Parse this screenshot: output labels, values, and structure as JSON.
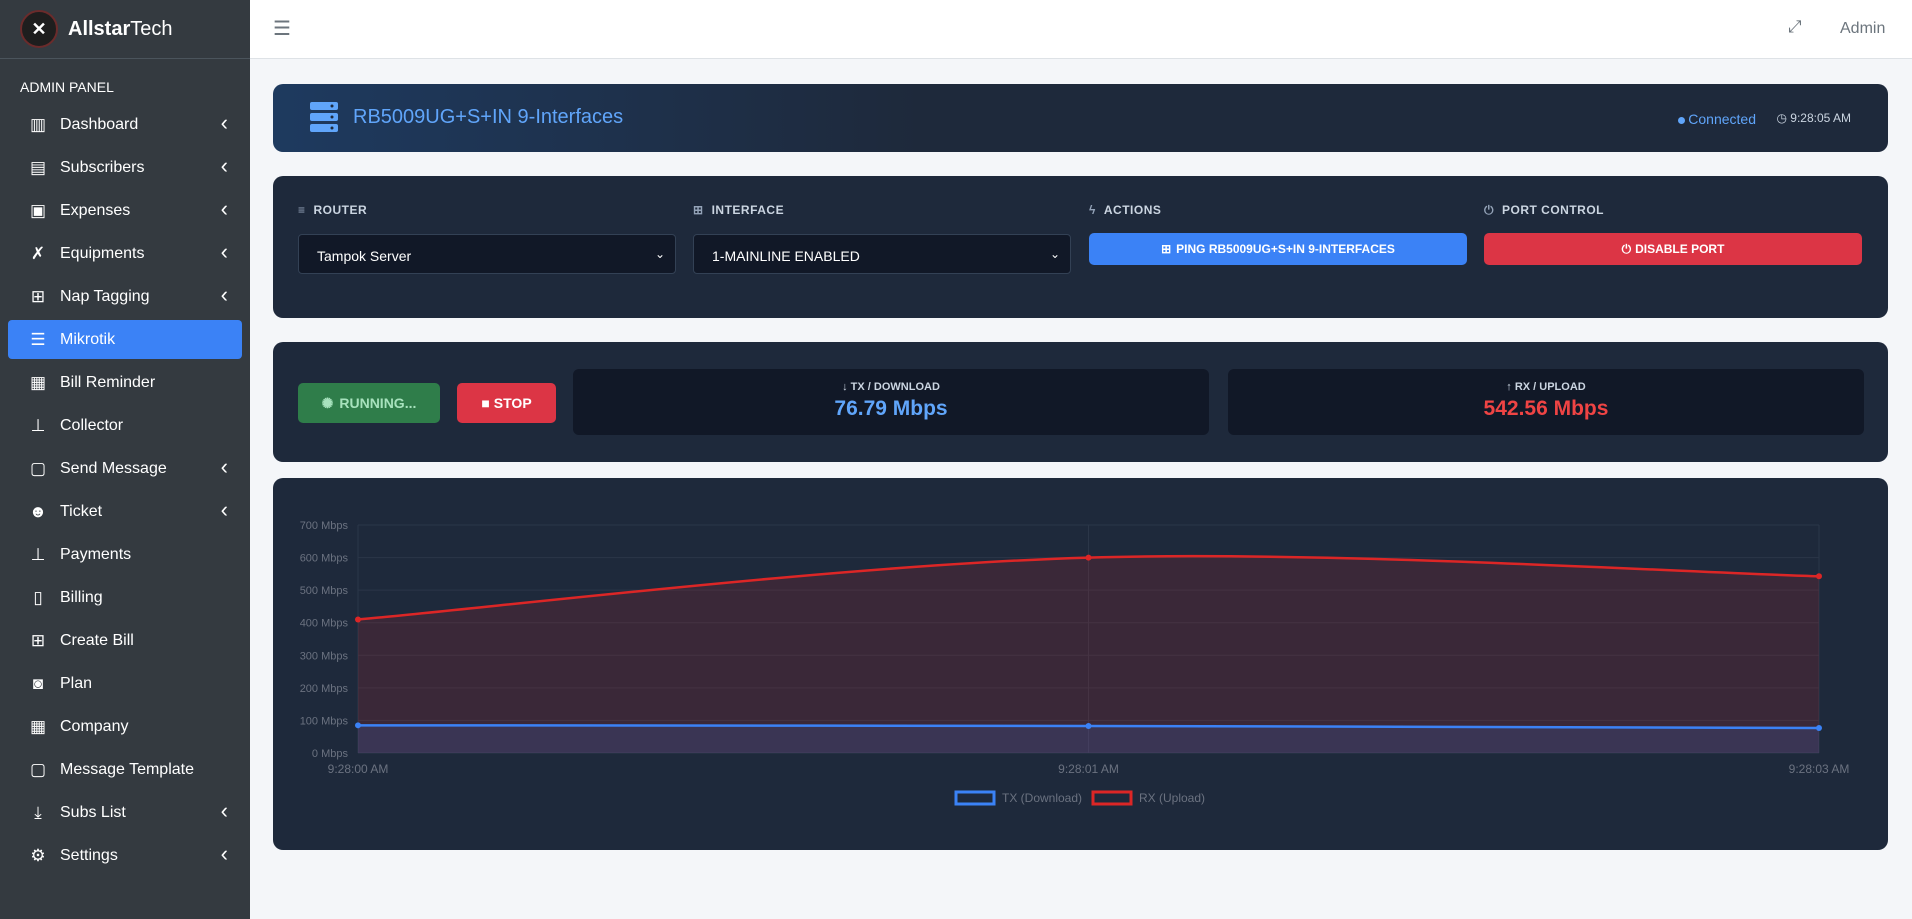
{
  "brand": {
    "name_bold": "Allstar",
    "name_rest": "Tech"
  },
  "sidebar": {
    "section_label": "ADMIN PANEL",
    "items": [
      {
        "label": "Dashboard",
        "icon": "bar-chart-icon",
        "chevron": true,
        "active": false
      },
      {
        "label": "Subscribers",
        "icon": "id-card-icon",
        "chevron": true,
        "active": false
      },
      {
        "label": "Expenses",
        "icon": "money-bill-icon",
        "chevron": true,
        "active": false
      },
      {
        "label": "Equipments",
        "icon": "tools-icon",
        "chevron": true,
        "active": false
      },
      {
        "label": "Nap Tagging",
        "icon": "sitemap-icon",
        "chevron": true,
        "active": false
      },
      {
        "label": "Mikrotik",
        "icon": "server-icon",
        "chevron": false,
        "active": true
      },
      {
        "label": "Bill Reminder",
        "icon": "calendar-icon",
        "chevron": false,
        "active": false
      },
      {
        "label": "Collector",
        "icon": "hand-coin-icon",
        "chevron": false,
        "active": false
      },
      {
        "label": "Send Message",
        "icon": "comment-icon",
        "chevron": true,
        "active": false
      },
      {
        "label": "Ticket",
        "icon": "user-gear-icon",
        "chevron": true,
        "active": false
      },
      {
        "label": "Payments",
        "icon": "hand-dollar-icon",
        "chevron": false,
        "active": false
      },
      {
        "label": "Billing",
        "icon": "receipt-icon",
        "chevron": false,
        "active": false
      },
      {
        "label": "Create Bill",
        "icon": "calendar-plus-icon",
        "chevron": false,
        "active": false
      },
      {
        "label": "Plan",
        "icon": "rss-icon",
        "chevron": false,
        "active": false
      },
      {
        "label": "Company",
        "icon": "building-icon",
        "chevron": false,
        "active": false
      },
      {
        "label": "Message Template",
        "icon": "comment-alt-icon",
        "chevron": false,
        "active": false
      },
      {
        "label": "Subs List",
        "icon": "download-icon",
        "chevron": true,
        "active": false
      },
      {
        "label": "Settings",
        "icon": "gears-icon",
        "chevron": true,
        "active": false
      }
    ]
  },
  "topbar": {
    "user": "Admin"
  },
  "device": {
    "title": "RB5009UG+S+IN 9-Interfaces",
    "status": "Connected",
    "time": "9:28:05 AM",
    "status_color": "#60a5fa"
  },
  "controls": {
    "router_label": "ROUTER",
    "router_value": "Tampok Server",
    "interface_label": "INTERFACE",
    "interface_value": "1-MAINLINE ENABLED",
    "actions_label": "ACTIONS",
    "ping_label": "PING RB5009UG+S+IN 9-INTERFACES",
    "port_label": "PORT CONTROL",
    "disable_label": "DISABLE PORT"
  },
  "monitor": {
    "running_label": "RUNNING...",
    "stop_label": "STOP",
    "tx_label": "TX / DOWNLOAD",
    "tx_value": "76.79 Mbps",
    "tx_color": "#60a5fa",
    "rx_label": "RX / UPLOAD",
    "rx_value": "542.56 Mbps",
    "rx_color": "#ef4444"
  },
  "chart_data": {
    "type": "line",
    "x": [
      "9:28:00 AM",
      "9:28:01 AM",
      "9:28:03 AM"
    ],
    "series": [
      {
        "name": "TX (Download)",
        "values": [
          85,
          83,
          76.79
        ],
        "color": "#3b82f6"
      },
      {
        "name": "RX (Upload)",
        "values": [
          410,
          600,
          542.56
        ],
        "color": "#dc2626"
      }
    ],
    "yticks": [
      "0 Mbps",
      "100 Mbps",
      "200 Mbps",
      "300 Mbps",
      "400 Mbps",
      "500 Mbps",
      "600 Mbps",
      "700 Mbps"
    ],
    "ylim": [
      0,
      700
    ],
    "grid": true,
    "legend": "bottom-center"
  }
}
